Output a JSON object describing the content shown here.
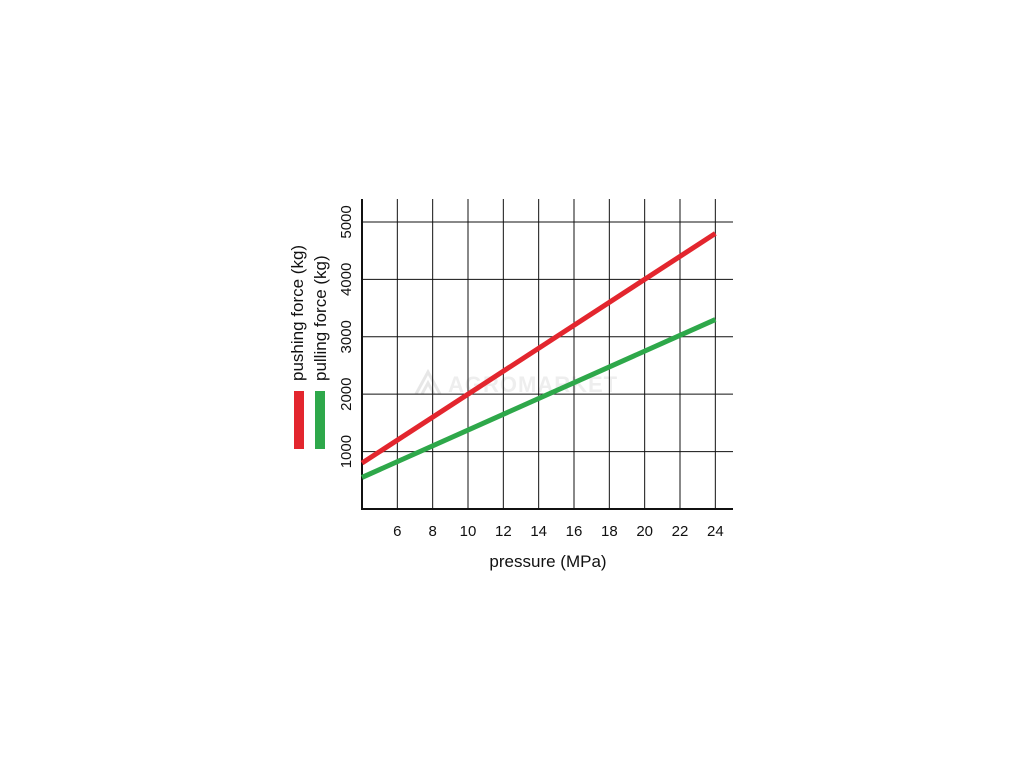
{
  "chart_data": {
    "type": "line",
    "x_ticks": [
      6,
      8,
      10,
      12,
      14,
      16,
      18,
      20,
      22,
      24
    ],
    "y_ticks": [
      1000,
      2000,
      3000,
      4000,
      5000
    ],
    "xlim": [
      4,
      25
    ],
    "ylim": [
      0,
      5400
    ],
    "grid": true,
    "xlabel": "pressure (MPa)",
    "ylabel": "",
    "legend_position": "left",
    "series": [
      {
        "name": "pushing force (kg)",
        "color": "#e3262e",
        "x": [
          4,
          24
        ],
        "y": [
          800,
          4800
        ]
      },
      {
        "name": "pulling force (kg)",
        "color": "#2ea84a",
        "x": [
          4,
          24
        ],
        "y": [
          550,
          3300
        ]
      }
    ]
  },
  "watermark": "AGROMARKET"
}
